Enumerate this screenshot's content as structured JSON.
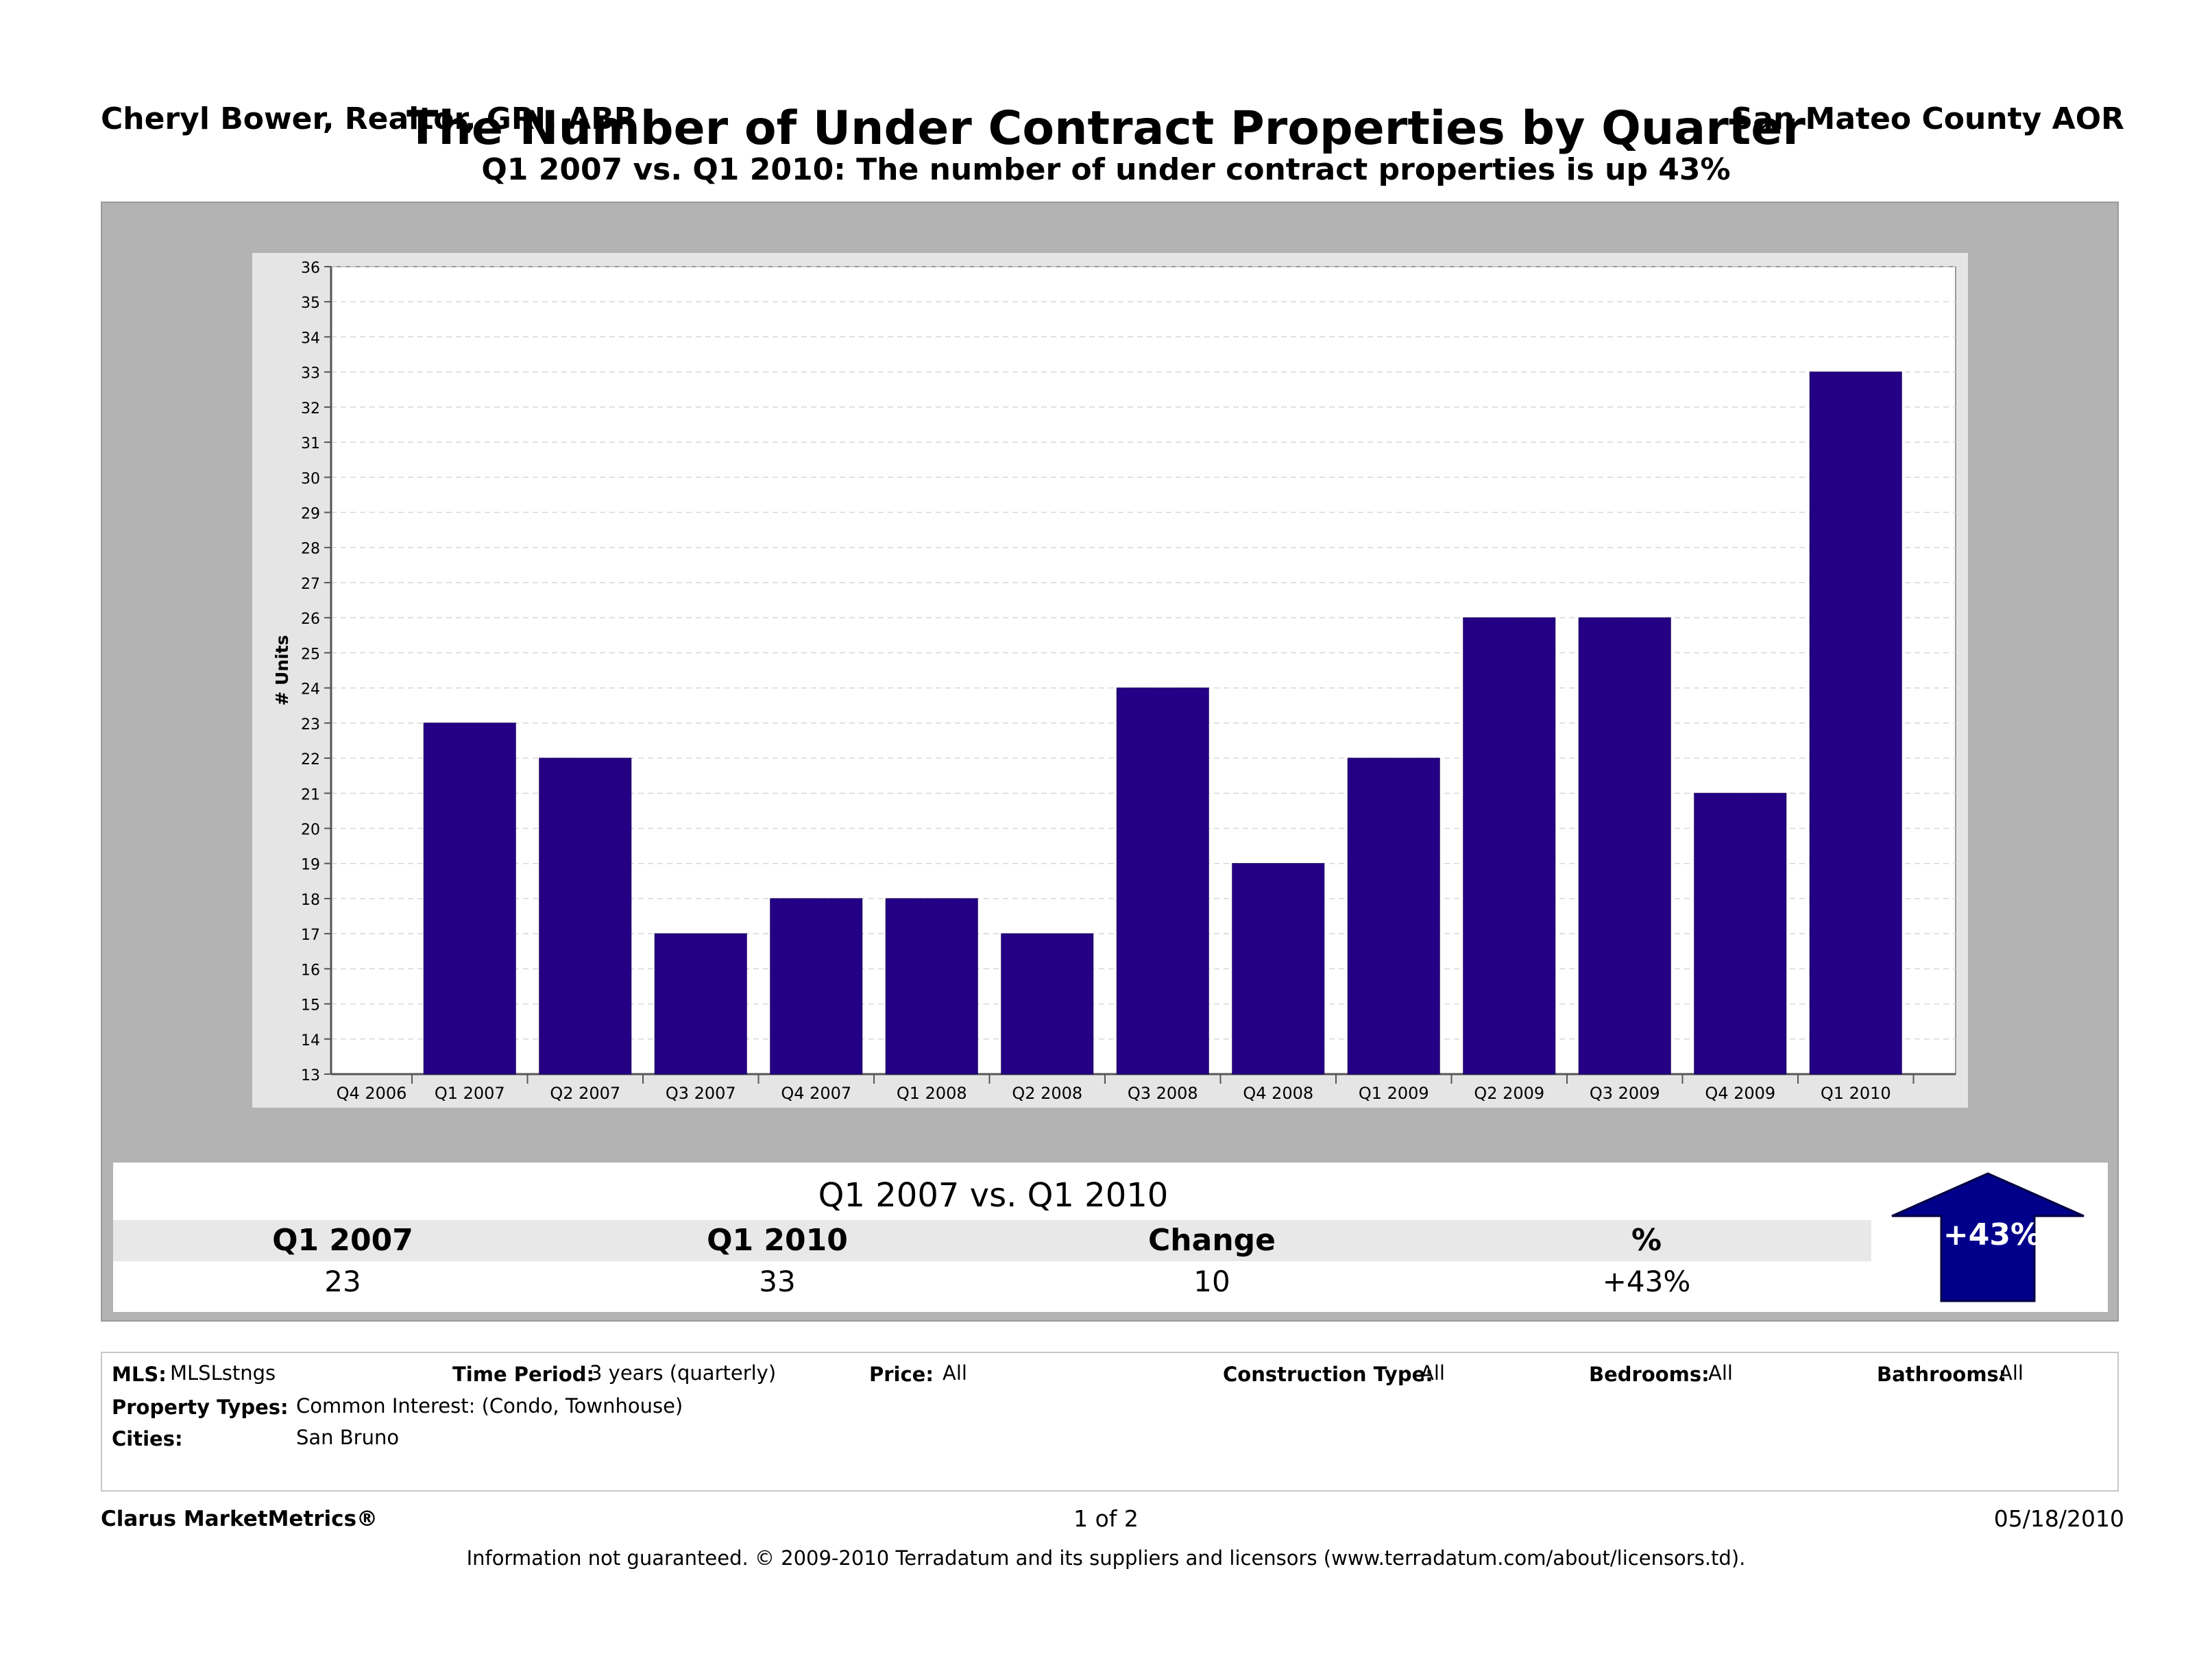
{
  "header": {
    "agent": "Cheryl Bower, Realtor, GRI, ABR",
    "association": "San Mateo County AOR",
    "title": "The Number of Under Contract Properties by Quarter",
    "subtitle": "Q1 2007 vs. Q1 2010:  The number of under contract properties is up 43%"
  },
  "colors": {
    "bar": "#240085",
    "arrow": "#00008b",
    "panel": "#b3b3b3",
    "frame": "#e5e5e5"
  },
  "chart_data": {
    "type": "bar",
    "ylabel": "# Units",
    "xlabel": "",
    "ylim": [
      13,
      36
    ],
    "yticks": [
      13,
      14,
      15,
      16,
      17,
      18,
      19,
      20,
      21,
      22,
      23,
      24,
      25,
      26,
      27,
      28,
      29,
      30,
      31,
      32,
      33,
      34,
      35,
      36
    ],
    "categories": [
      "Q4 2006",
      "Q1 2007",
      "Q2 2007",
      "Q3 2007",
      "Q4 2007",
      "Q1 2008",
      "Q2 2008",
      "Q3 2008",
      "Q4 2008",
      "Q1 2009",
      "Q2 2009",
      "Q3 2009",
      "Q4 2009",
      "Q1 2010"
    ],
    "values": [
      null,
      23,
      22,
      17,
      18,
      18,
      17,
      24,
      19,
      22,
      26,
      26,
      21,
      33
    ],
    "grid": true,
    "legend": "none"
  },
  "summary": {
    "title": "Q1 2007 vs. Q1 2010",
    "headers": [
      "Q1 2007",
      "Q1 2010",
      "Change",
      "%"
    ],
    "values": [
      "23",
      "33",
      "10",
      "+43%"
    ],
    "arrow_label": "+43%",
    "arrow_icon": "up-arrow-icon"
  },
  "criteria": {
    "mls_label": "MLS:",
    "mls_value": "MLSLstngs",
    "time_label": "Time Period:",
    "time_value": "3 years (quarterly)",
    "price_label": "Price:",
    "price_value": "All",
    "construction_label": "Construction Type:",
    "construction_value": "All",
    "bedrooms_label": "Bedrooms:",
    "bedrooms_value": "All",
    "bathrooms_label": "Bathrooms:",
    "bathrooms_value": "All",
    "property_label": "Property Types:",
    "property_value": "Common Interest: (Condo, Townhouse)",
    "cities_label": "Cities:",
    "cities_value": "San Bruno"
  },
  "footer": {
    "brand": "Clarus MarketMetrics®",
    "page": "1 of 2",
    "date": "05/18/2010",
    "disclaimer": "Information not guaranteed.  © 2009-2010 Terradatum and its suppliers and licensors (www.terradatum.com/about/licensors.td)."
  }
}
